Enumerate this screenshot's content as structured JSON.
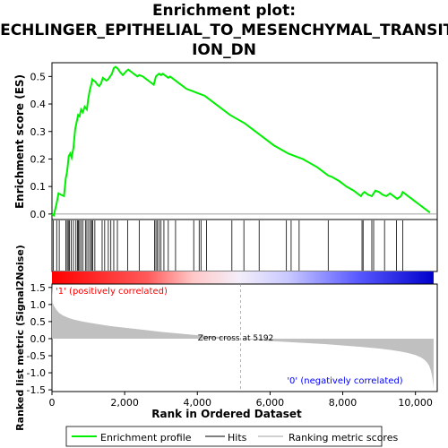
{
  "title_lines": [
    "Enrichment plot:",
    "JECHLINGER_EPITHELIAL_TO_MESENCHYMAL_TRANSIT",
    "ION_DN"
  ],
  "colors": {
    "es_line": "#00ee00",
    "hits": "#000000",
    "metric_fill": "#c0c0c0",
    "pos_label": "#ff0000",
    "neg_label": "#0000ff",
    "zero_cross_line": "#a0a0a0",
    "heat_red": "#ff0000",
    "heat_blue": "#0000ff"
  },
  "es_panel": {
    "ylabel": "Enrichment score (ES)",
    "ylim": [
      -0.02,
      0.55
    ],
    "yticks": [
      0.0,
      0.1,
      0.2,
      0.3,
      0.4,
      0.5
    ],
    "ytick_labels": [
      "0.0",
      "0.1",
      "0.2",
      "0.3",
      "0.4",
      "0.5"
    ]
  },
  "metric_panel": {
    "ylabel_line1": "Ranked list metric (Signal2Noise)",
    "ylim": [
      -1.55,
      1.6
    ],
    "yticks": [
      -1.5,
      -1.0,
      -0.5,
      0.0,
      0.5,
      1.0,
      1.5
    ],
    "ytick_labels": [
      "-1.5",
      "-1.0",
      "-0.5",
      "0.0",
      "0.5",
      "1.0",
      "1.5"
    ],
    "pos_label": "'1' (positively correlated)",
    "neg_label": "'0' (negatively correlated)",
    "zero_cross_text": "Zero cross at 5192",
    "zero_cross": 5192
  },
  "xaxis": {
    "label": "Rank in Ordered Dataset",
    "xlim": [
      0,
      10600
    ],
    "xticks": [
      0,
      2000,
      4000,
      6000,
      8000,
      10000
    ],
    "xtick_labels": [
      "0",
      "2,000",
      "4,000",
      "6,000",
      "8,000",
      "10,000"
    ]
  },
  "legend": {
    "items": [
      {
        "label": "Enrichment profile",
        "kind": "es"
      },
      {
        "label": "Hits",
        "kind": "hits"
      },
      {
        "label": "Ranking metric scores",
        "kind": "metric"
      }
    ]
  },
  "chart_data": {
    "type": "line",
    "title": "Enrichment plot: JECHLINGER_EPITHELIAL_TO_MESENCHYMAL_TRANSITION_DN",
    "xlabel": "Rank in Ordered Dataset",
    "ylabel": "Enrichment score (ES)",
    "n_genes": 10500,
    "es_curve": {
      "x": [
        0,
        50,
        130,
        180,
        250,
        330,
        380,
        410,
        430,
        460,
        500,
        540,
        590,
        640,
        680,
        720,
        760,
        800,
        850,
        900,
        960,
        1000,
        1040,
        1080,
        1110,
        1150,
        1200,
        1250,
        1300,
        1350,
        1400,
        1450,
        1500,
        1550,
        1600,
        1650,
        1700,
        1750,
        1800,
        1830,
        1880,
        1950,
        2050,
        2100,
        2150,
        2200,
        2250,
        2300,
        2350,
        2400,
        2500,
        2600,
        2700,
        2800,
        2830,
        2860,
        2900,
        2950,
        3000,
        3050,
        3100,
        3150,
        3200,
        3250,
        3300,
        3350,
        3400,
        3500,
        3600,
        3700,
        3800,
        3900,
        4000,
        4100,
        4200,
        4300,
        4500,
        4700,
        4900,
        5100,
        5300,
        5500,
        5700,
        5900,
        6100,
        6300,
        6500,
        6700,
        6900,
        7100,
        7300,
        7500,
        7600,
        7700,
        7900,
        8100,
        8300,
        8500,
        8550,
        8600,
        8700,
        8800,
        8850,
        8900,
        9000,
        9100,
        9200,
        9300,
        9400,
        9500,
        9600,
        9650,
        9700,
        9800,
        9900,
        10000,
        10100,
        10200,
        10300,
        10400
      ],
      "y": [
        0.0,
        -0.005,
        0.04,
        0.075,
        0.07,
        0.065,
        0.13,
        0.15,
        0.17,
        0.21,
        0.22,
        0.205,
        0.24,
        0.31,
        0.335,
        0.36,
        0.355,
        0.38,
        0.37,
        0.39,
        0.38,
        0.42,
        0.45,
        0.47,
        0.49,
        0.485,
        0.48,
        0.47,
        0.465,
        0.475,
        0.495,
        0.49,
        0.485,
        0.49,
        0.5,
        0.51,
        0.53,
        0.535,
        0.53,
        0.525,
        0.515,
        0.505,
        0.52,
        0.525,
        0.52,
        0.515,
        0.51,
        0.505,
        0.5,
        0.505,
        0.5,
        0.49,
        0.48,
        0.47,
        0.485,
        0.5,
        0.505,
        0.51,
        0.505,
        0.51,
        0.505,
        0.5,
        0.495,
        0.5,
        0.495,
        0.49,
        0.485,
        0.475,
        0.465,
        0.455,
        0.45,
        0.445,
        0.44,
        0.435,
        0.43,
        0.42,
        0.4,
        0.38,
        0.36,
        0.345,
        0.33,
        0.31,
        0.29,
        0.27,
        0.25,
        0.235,
        0.22,
        0.21,
        0.2,
        0.185,
        0.17,
        0.15,
        0.14,
        0.135,
        0.12,
        0.1,
        0.085,
        0.065,
        0.075,
        0.08,
        0.07,
        0.065,
        0.075,
        0.085,
        0.08,
        0.07,
        0.065,
        0.075,
        0.065,
        0.055,
        0.065,
        0.08,
        0.075,
        0.065,
        0.055,
        0.045,
        0.035,
        0.025,
        0.015,
        0.005
      ]
    },
    "hits": [
      40,
      130,
      200,
      380,
      420,
      450,
      480,
      530,
      590,
      660,
      700,
      730,
      760,
      800,
      850,
      920,
      960,
      1010,
      1060,
      1090,
      1120,
      1180,
      1380,
      1450,
      1550,
      1620,
      1700,
      1800,
      2080,
      2400,
      2820,
      2860,
      2900,
      2950,
      3000,
      3080,
      3200,
      3400,
      3900,
      4050,
      4100,
      4250,
      4950,
      5280,
      5700,
      6450,
      6580,
      6800,
      7600,
      8530,
      8560,
      8800,
      8850,
      9150,
      9480,
      9650
    ],
    "metric_curve": {
      "x": [
        0,
        20,
        60,
        120,
        200,
        300,
        450,
        600,
        800,
        1000,
        1300,
        1600,
        2000,
        2500,
        3000,
        3500,
        4000,
        4500,
        5000,
        5192,
        5500,
        6000,
        6500,
        7000,
        7500,
        8000,
        8500,
        9000,
        9300,
        9600,
        9800,
        10000,
        10150,
        10250,
        10320,
        10380,
        10420,
        10450,
        10480,
        10500
      ],
      "y": [
        1.6,
        1.05,
        0.95,
        0.85,
        0.75,
        0.68,
        0.61,
        0.56,
        0.51,
        0.47,
        0.42,
        0.37,
        0.32,
        0.26,
        0.2,
        0.15,
        0.1,
        0.06,
        0.02,
        0.0,
        -0.03,
        -0.07,
        -0.1,
        -0.13,
        -0.16,
        -0.2,
        -0.24,
        -0.29,
        -0.33,
        -0.38,
        -0.42,
        -0.48,
        -0.55,
        -0.62,
        -0.7,
        -0.8,
        -0.92,
        -1.05,
        -1.25,
        -1.45
      ]
    }
  }
}
